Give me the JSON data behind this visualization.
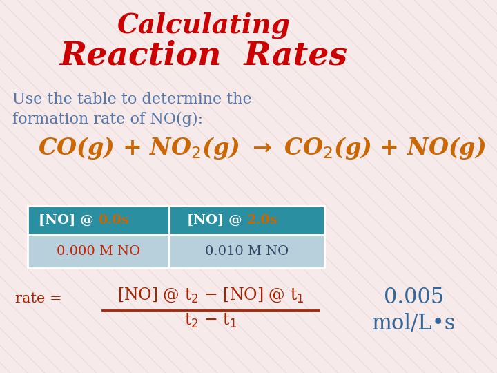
{
  "title_line1": "Calculating",
  "title_line2": "Reaction  Rates",
  "title_color": "#cc0000",
  "text_color": "#5577aa",
  "text_line1": "Use the table to determine the",
  "text_line2": "formation rate of NO(g):",
  "reaction_color": "#cc6600",
  "table_header_bg": "#2a8fa0",
  "table_row_bg": "#b8d0dc",
  "col1_value": "0.000 M NO",
  "col2_value": "0.010 M NO",
  "col1_val_color": "#cc2200",
  "col2_val_color": "#334466",
  "formula_color": "#aa2200",
  "result_color": "#336699",
  "result_value": "0.005",
  "result_unit": "mol/L•s",
  "background_color": "#f7eaea",
  "diag_color": "#e8cccc"
}
